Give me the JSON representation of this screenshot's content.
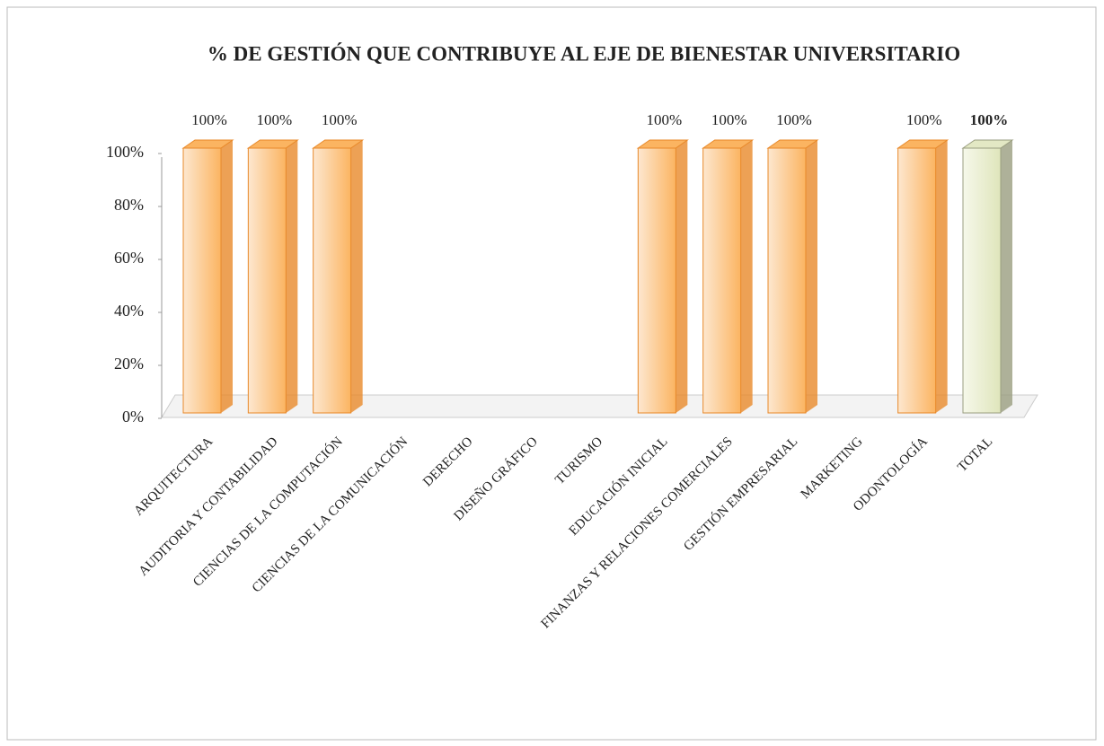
{
  "chart_data": {
    "type": "bar3d",
    "title": "% DE GESTIÓN QUE CONTRIBUYE AL EJE DE BIENESTAR UNIVERSITARIO",
    "categories": [
      "ARQUITECTURA",
      "AUDITORIA Y CONTABILIDAD",
      "CIENCIAS DE LA COMPUTACIÓN",
      "CIENCIAS DE LA COMUNICACIÓN",
      "DERECHO",
      "DISEÑO GRÁFICO",
      "TURISMO",
      "EDUCACIÓN INICIAL",
      "FINANZAS Y RELACIONES COMERCIALES",
      "GESTIÓN EMPRESARIAL",
      "MARKETING",
      "ODONTOLOGÍA",
      "TOTAL"
    ],
    "values": [
      100,
      100,
      100,
      0,
      0,
      0,
      0,
      100,
      100,
      100,
      0,
      100,
      100
    ],
    "value_labels": [
      "100%",
      "100%",
      "100%",
      null,
      null,
      null,
      null,
      "100%",
      "100%",
      "100%",
      null,
      "100%",
      "100%"
    ],
    "colors": [
      "#fbb461",
      "#fbb461",
      "#fbb461",
      "#fbb461",
      "#fbb461",
      "#fbb461",
      "#fbb461",
      "#fbb461",
      "#fbb461",
      "#fbb461",
      "#fbb461",
      "#fbb461",
      "#e3e8c4"
    ],
    "ylim": [
      0,
      100
    ],
    "yticks": [
      {
        "value": 0,
        "label": "0%"
      },
      {
        "value": 20,
        "label": "20%"
      },
      {
        "value": 40,
        "label": "40%"
      },
      {
        "value": 60,
        "label": "60%"
      },
      {
        "value": 80,
        "label": "80%"
      },
      {
        "value": 100,
        "label": "100%"
      }
    ],
    "grid": false
  }
}
